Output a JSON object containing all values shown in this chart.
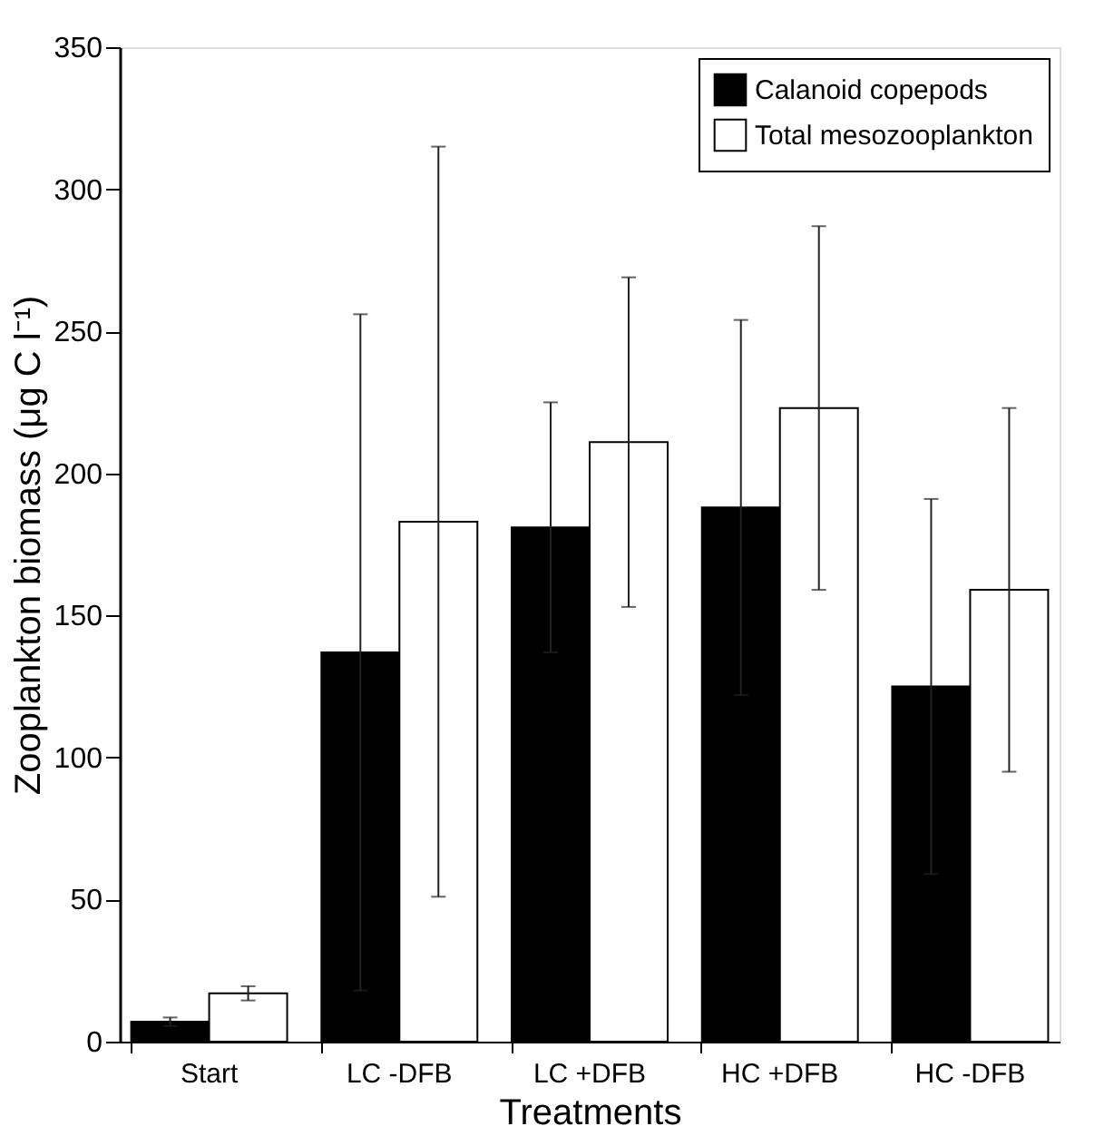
{
  "chart_data": {
    "type": "bar",
    "xlabel": "Treatments",
    "ylabel": "Zooplankton biomass (μg C l⁻¹)",
    "categories": [
      "Start",
      "LC -DFB",
      "LC +DFB",
      "HC +DFB",
      "HC -DFB"
    ],
    "series": [
      {
        "name": "Calanoid copepods",
        "color": "#000000",
        "values": [
          7,
          137,
          181,
          188,
          125
        ],
        "errors": [
          1.5,
          119,
          44,
          66,
          66
        ]
      },
      {
        "name": "Total mesozooplankton",
        "color": "#ffffff",
        "values": [
          17,
          183,
          211,
          223,
          159
        ],
        "errors": [
          2.5,
          132,
          58,
          64,
          64
        ]
      }
    ],
    "ylim": [
      0,
      350
    ],
    "yticks": [
      0,
      50,
      100,
      150,
      200,
      250,
      300,
      350
    ],
    "grid": false,
    "legend": "top right"
  }
}
